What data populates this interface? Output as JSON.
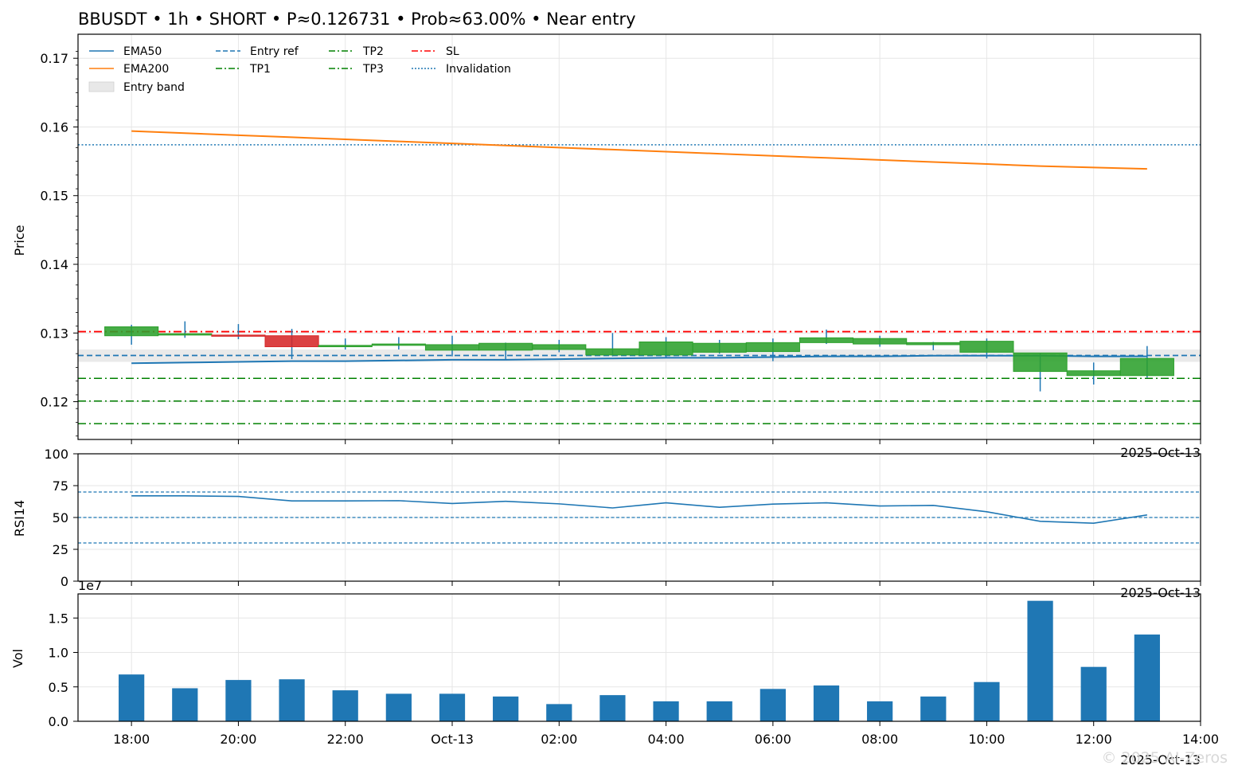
{
  "chart_data": {
    "type": "candlestick",
    "title": "BBUSDT • 1h • SHORT • P≈0.126731 • Prob≈63.00% • Near entry",
    "date_label": "2025-Oct-13",
    "watermark": "© 2025 AI-Zeros",
    "x_ticks": [
      {
        "x": 0,
        "label": "18:00"
      },
      {
        "x": 2,
        "label": "20:00"
      },
      {
        "x": 4,
        "label": "22:00"
      },
      {
        "x": 6,
        "label": "Oct-13"
      },
      {
        "x": 8,
        "label": "02:00"
      },
      {
        "x": 10,
        "label": "04:00"
      },
      {
        "x": 12,
        "label": "06:00"
      },
      {
        "x": 14,
        "label": "08:00"
      },
      {
        "x": 16,
        "label": "10:00"
      },
      {
        "x": 18,
        "label": "12:00"
      },
      {
        "x": 20,
        "label": "14:00"
      }
    ],
    "xlim": [
      -1,
      20
    ],
    "price_panel": {
      "ylabel": "Price",
      "ylim": [
        0.1145,
        0.1735
      ],
      "yticks": [
        0.12,
        0.13,
        0.14,
        0.15,
        0.16,
        0.17
      ],
      "ytick_labels": [
        "0.12",
        "0.13",
        "0.14",
        "0.15",
        "0.16",
        "0.17"
      ],
      "candles": [
        {
          "o": 0.1296,
          "h": 0.1312,
          "l": 0.1283,
          "c": 0.1309
        },
        {
          "o": 0.1297,
          "h": 0.1317,
          "l": 0.1293,
          "c": 0.1299
        },
        {
          "o": 0.1297,
          "h": 0.1313,
          "l": 0.1291,
          "c": 0.1296
        },
        {
          "o": 0.1296,
          "h": 0.1306,
          "l": 0.1262,
          "c": 0.128
        },
        {
          "o": 0.128,
          "h": 0.1292,
          "l": 0.1276,
          "c": 0.1282
        },
        {
          "o": 0.1282,
          "h": 0.1294,
          "l": 0.1276,
          "c": 0.1284
        },
        {
          "o": 0.1275,
          "h": 0.1296,
          "l": 0.1266,
          "c": 0.1283
        },
        {
          "o": 0.1275,
          "h": 0.1286,
          "l": 0.1262,
          "c": 0.1285
        },
        {
          "o": 0.1276,
          "h": 0.129,
          "l": 0.1272,
          "c": 0.1283
        },
        {
          "o": 0.1268,
          "h": 0.13,
          "l": 0.1266,
          "c": 0.1277
        },
        {
          "o": 0.1268,
          "h": 0.1294,
          "l": 0.1264,
          "c": 0.1287
        },
        {
          "o": 0.1272,
          "h": 0.129,
          "l": 0.127,
          "c": 0.1285
        },
        {
          "o": 0.1273,
          "h": 0.1292,
          "l": 0.1259,
          "c": 0.1286
        },
        {
          "o": 0.1286,
          "h": 0.1305,
          "l": 0.1284,
          "c": 0.1293
        },
        {
          "o": 0.1284,
          "h": 0.1296,
          "l": 0.128,
          "c": 0.1292
        },
        {
          "o": 0.1283,
          "h": 0.1287,
          "l": 0.1275,
          "c": 0.1286
        },
        {
          "o": 0.1272,
          "h": 0.1292,
          "l": 0.1263,
          "c": 0.1288
        },
        {
          "o": 0.1244,
          "h": 0.127,
          "l": 0.1215,
          "c": 0.1271
        },
        {
          "o": 0.1238,
          "h": 0.1257,
          "l": 0.1225,
          "c": 0.1245
        },
        {
          "o": 0.1238,
          "h": 0.1281,
          "l": 0.1235,
          "c": 0.1263
        }
      ],
      "ema50": [
        0.1256,
        0.1257,
        0.1258,
        0.1259,
        0.1259,
        0.126,
        0.1261,
        0.1261,
        0.1262,
        0.1263,
        0.1264,
        0.1264,
        0.1265,
        0.1266,
        0.1266,
        0.1267,
        0.1267,
        0.1267,
        0.1266,
        0.1266
      ],
      "ema200": [
        0.1594,
        0.1591,
        0.1588,
        0.1585,
        0.1582,
        0.1579,
        0.1576,
        0.1573,
        0.157,
        0.1567,
        0.1564,
        0.1561,
        0.1558,
        0.1555,
        0.1552,
        0.1549,
        0.1546,
        0.1543,
        0.1541,
        0.1539
      ],
      "entry_ref": 0.12673,
      "entry_band": [
        0.1258,
        0.1276
      ],
      "tp1": 0.1234,
      "tp2": 0.1201,
      "tp3": 0.1168,
      "sl": 0.1302,
      "invalidation": 0.1574,
      "legend": [
        {
          "label": "EMA50",
          "style": "ema50"
        },
        {
          "label": "EMA200",
          "style": "ema200"
        },
        {
          "label": "Entry band",
          "style": "band"
        },
        {
          "label": "Entry ref",
          "style": "entry"
        },
        {
          "label": "TP1",
          "style": "tp"
        },
        {
          "label": "TP2",
          "style": "tp"
        },
        {
          "label": "TP3",
          "style": "tp"
        },
        {
          "label": "SL",
          "style": "sl"
        },
        {
          "label": "Invalidation",
          "style": "inval"
        }
      ],
      "legend_location": "top-left"
    },
    "rsi_panel": {
      "ylabel": "RSI14",
      "ylim": [
        0,
        100
      ],
      "yticks": [
        0,
        25,
        50,
        75,
        100
      ],
      "ytick_labels": [
        "0",
        "25",
        "50",
        "75",
        "100"
      ],
      "levels": [
        70,
        50,
        30
      ],
      "values": [
        67,
        67,
        66.5,
        63,
        63,
        63.2,
        61,
        62.7,
        60.7,
        57.5,
        61.5,
        58,
        60.5,
        61.5,
        59,
        59.5,
        54.5,
        47,
        45.5,
        52
      ]
    },
    "volume_panel": {
      "ylabel": "Vol",
      "exponent_label": "1e7",
      "ylim": [
        0,
        1.85
      ],
      "yticks": [
        0,
        0.5,
        1.0,
        1.5
      ],
      "ytick_labels": [
        "0.0",
        "0.5",
        "1.0",
        "1.5"
      ],
      "values": [
        0.68,
        0.48,
        0.6,
        0.61,
        0.45,
        0.4,
        0.4,
        0.36,
        0.25,
        0.38,
        0.29,
        0.29,
        0.47,
        0.52,
        0.29,
        0.36,
        0.57,
        1.75,
        0.79,
        1.26
      ]
    },
    "colors": {
      "up": "#2ca02c",
      "down": "#d62728",
      "wick": "#1f77b4",
      "ema50": "#1f77b4",
      "ema200": "#ff7f0e",
      "entry": "#1f77b4",
      "tp": "#008000",
      "sl": "#ff0000",
      "inval": "#1f77b4",
      "band": "#e8e8e8",
      "volume": "#1f77b4",
      "rsi": "#1f77b4",
      "grid": "#e6e6e6"
    }
  }
}
